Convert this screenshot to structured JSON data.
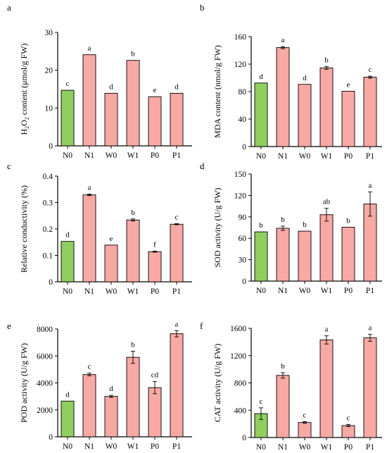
{
  "figure": {
    "colors": {
      "control": "#8fce5f",
      "treatment": "#f7a9a4",
      "outline": "#000000"
    }
  },
  "chart_data": [
    {
      "type": "bar",
      "panel_label": "a",
      "categories": [
        "N0",
        "N1",
        "W0",
        "W1",
        "P0",
        "P1"
      ],
      "values": [
        14.7,
        24.1,
        13.9,
        22.6,
        13.0,
        13.9
      ],
      "errors": [
        0,
        0,
        0,
        0,
        0,
        0
      ],
      "letters": [
        "c",
        "a",
        "d",
        "b",
        "e",
        "d"
      ],
      "ylabel_parts": [
        {
          "t": "H"
        },
        {
          "t": "2",
          "sub": true
        },
        {
          "t": "O"
        },
        {
          "t": "2",
          "sub": true
        },
        {
          "t": " content (μmol/g FW)"
        }
      ],
      "ylim": [
        0,
        30
      ],
      "yticks": [
        0,
        10,
        20,
        30
      ],
      "ytick_labels": [
        "0",
        "10",
        "20",
        "30"
      ]
    },
    {
      "type": "bar",
      "panel_label": "b",
      "categories": [
        "N0",
        "N1",
        "W0",
        "W1",
        "P0",
        "P1"
      ],
      "values": [
        92.5,
        144,
        90.5,
        114.5,
        80.5,
        101
      ],
      "errors": [
        0,
        1.5,
        0,
        2,
        0,
        1.5
      ],
      "letters": [
        "d",
        "a",
        "d",
        "b",
        "e",
        "c"
      ],
      "ylabel_parts": [
        {
          "t": "MDA content (nmol/g FW)"
        }
      ],
      "ylim": [
        0,
        160
      ],
      "yticks": [
        0,
        40,
        80,
        120,
        160
      ],
      "ytick_labels": [
        "0",
        "40",
        "80",
        "120",
        "160"
      ]
    },
    {
      "type": "bar",
      "panel_label": "c",
      "categories": [
        "N0",
        "N1",
        "W0",
        "W1",
        "P0",
        "P1"
      ],
      "values": [
        0.153,
        0.329,
        0.139,
        0.234,
        0.114,
        0.218
      ],
      "errors": [
        0,
        0.003,
        0,
        0.004,
        0.002,
        0.002
      ],
      "letters": [
        "d",
        "a",
        "e",
        "b",
        "f",
        "c"
      ],
      "ylabel_parts": [
        {
          "t": "Relative conductivity (%)"
        }
      ],
      "ylim": [
        0,
        0.4
      ],
      "yticks": [
        0,
        0.1,
        0.2,
        0.3,
        0.4
      ],
      "ytick_labels": [
        "0",
        "0.1",
        "0.2",
        "0.3",
        "0.4"
      ]
    },
    {
      "type": "bar",
      "panel_label": "d",
      "categories": [
        "N0",
        "N1",
        "W0",
        "W1",
        "P0",
        "P1"
      ],
      "values": [
        69,
        74,
        70,
        93,
        75.5,
        108
      ],
      "errors": [
        0,
        3,
        0,
        9,
        0,
        17
      ],
      "letters": [
        "b",
        "b",
        "b",
        "ab",
        "b",
        "a"
      ],
      "ylabel_parts": [
        {
          "t": "SOD activity (U/g FW)"
        }
      ],
      "ylim": [
        0,
        150
      ],
      "yticks": [
        0,
        30,
        60,
        90,
        120,
        150
      ],
      "ytick_labels": [
        "0",
        "30",
        "60",
        "90",
        "120",
        "150"
      ]
    },
    {
      "type": "bar",
      "panel_label": "e",
      "categories": [
        "N0",
        "N1",
        "W0",
        "W1",
        "P0",
        "P1"
      ],
      "values": [
        2650,
        4620,
        3000,
        5900,
        3650,
        7650
      ],
      "errors": [
        0,
        100,
        80,
        450,
        450,
        230
      ],
      "letters": [
        "d",
        "c",
        "d",
        "b",
        "cd",
        "a"
      ],
      "ylabel_parts": [
        {
          "t": "POD activity (U/g FW)"
        }
      ],
      "ylim": [
        0,
        8000
      ],
      "yticks": [
        0,
        2000,
        4000,
        6000,
        8000
      ],
      "ytick_labels": [
        "0",
        "2000",
        "4000",
        "6000",
        "8000"
      ]
    },
    {
      "type": "bar",
      "panel_label": "f",
      "categories": [
        "N0",
        "N1",
        "W0",
        "W1",
        "P0",
        "P1"
      ],
      "values": [
        350,
        910,
        220,
        1430,
        175,
        1460
      ],
      "errors": [
        85,
        40,
        12,
        60,
        15,
        50
      ],
      "letters": [
        "c",
        "b",
        "c",
        "a",
        "c",
        "a"
      ],
      "ylabel_parts": [
        {
          "t": "CAT activity (U/g FW)"
        }
      ],
      "ylim": [
        0,
        1600
      ],
      "yticks": [
        0,
        400,
        800,
        1200,
        1600
      ],
      "ytick_labels": [
        "0",
        "400",
        "800",
        "1200",
        "1600"
      ]
    }
  ]
}
